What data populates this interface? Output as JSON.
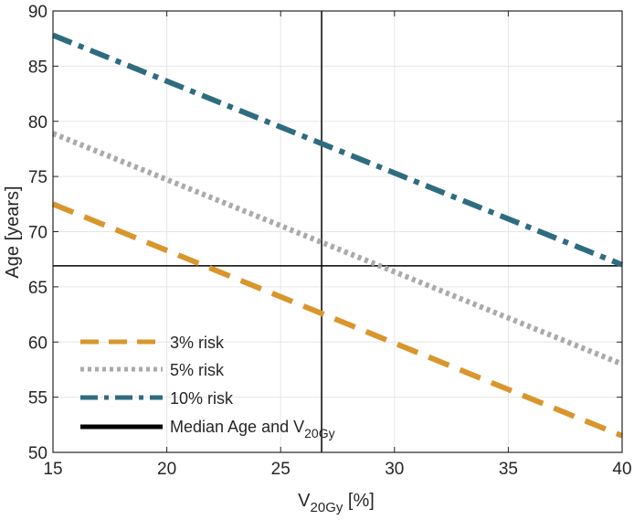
{
  "chart_data": {
    "type": "line",
    "x": [
      15,
      40
    ],
    "series": [
      {
        "name": "3% risk",
        "values": [
          72.5,
          51.5
        ],
        "color": "#d8962d",
        "style": "dashed"
      },
      {
        "name": "5% risk",
        "values": [
          78.9,
          58.0
        ],
        "color": "#aaaaaa",
        "style": "dotted"
      },
      {
        "name": "10% risk",
        "values": [
          87.8,
          67.0
        ],
        "color": "#2f6c80",
        "style": "dash-dot"
      },
      {
        "name": "Median Age and V",
        "name_subscript": "20Gy",
        "color": "#000000",
        "style": "solid",
        "median_x": 26.8,
        "median_y": 66.9
      }
    ],
    "xlabel": "V",
    "xlabel_subscript": "20Gy",
    "xlabel_suffix": " [%]",
    "ylabel": "Age [years]",
    "xlim": [
      15,
      40
    ],
    "ylim": [
      50,
      90
    ],
    "xticks": [
      15,
      20,
      25,
      30,
      35,
      40
    ],
    "yticks": [
      50,
      55,
      60,
      65,
      70,
      75,
      80,
      85,
      90
    ],
    "grid": true,
    "legend_position": "bottom-left"
  }
}
